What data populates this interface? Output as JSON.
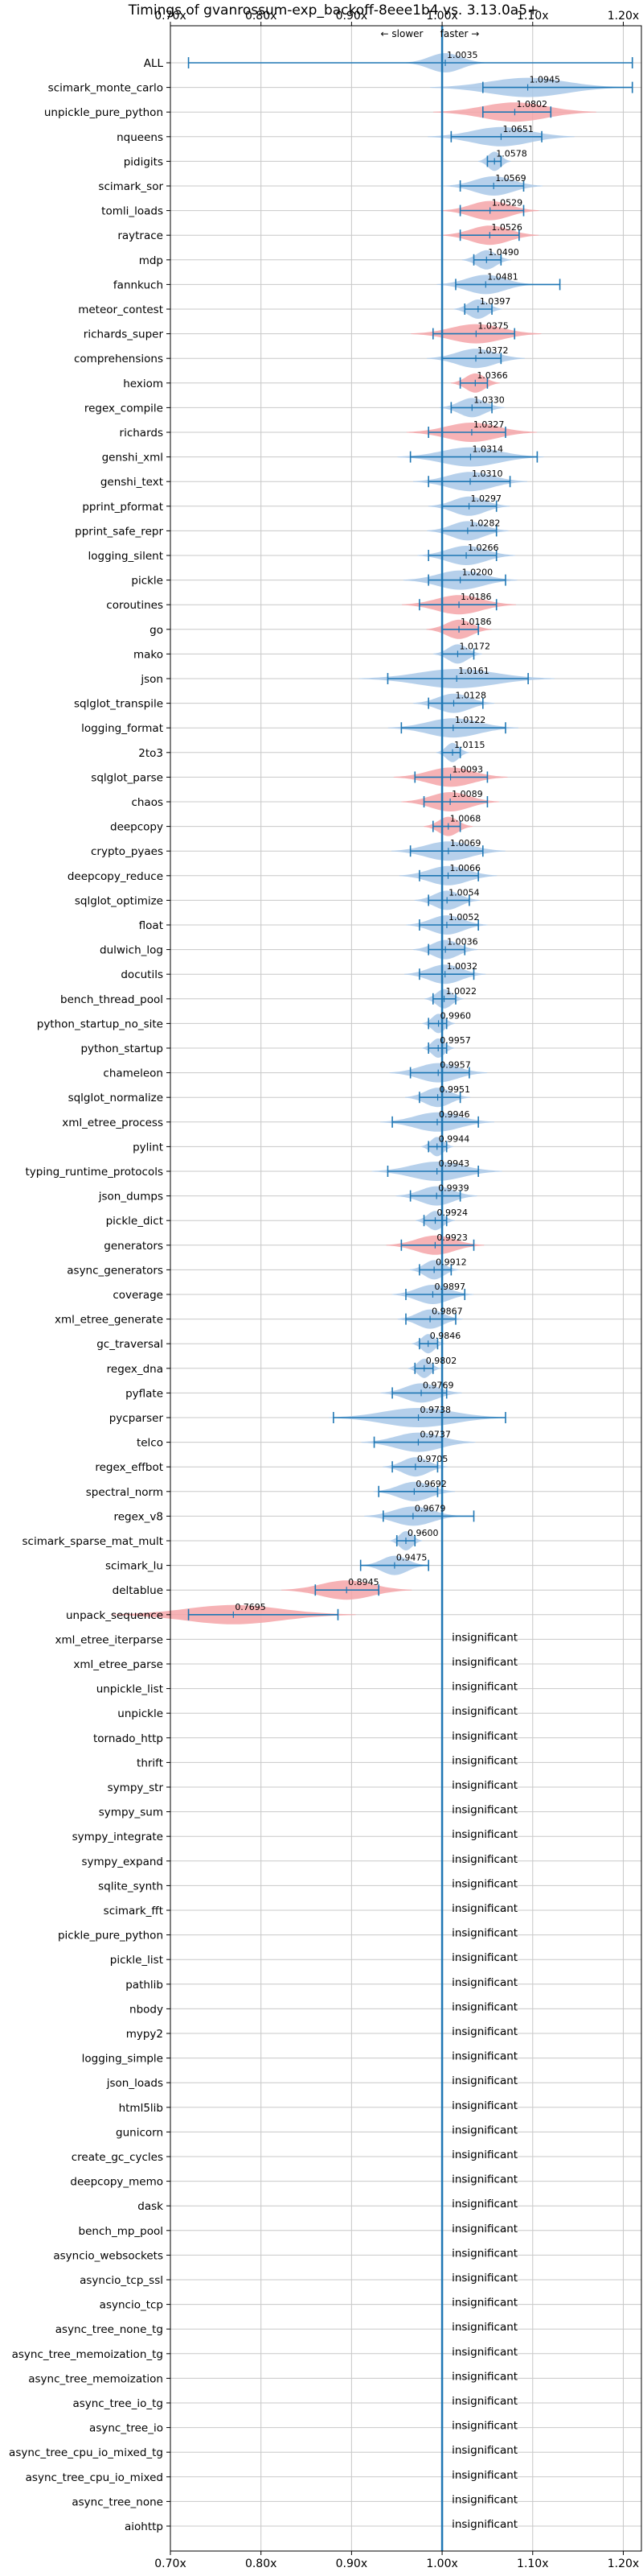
{
  "chart_data": {
    "type": "violin",
    "title": "Timings of gvanrossum-exp_backoff-8eee1b4 vs. 3.13.0a5+",
    "annotation_slower": "← slower",
    "annotation_faster": "faster →",
    "xlim": [
      0.7,
      1.22
    ],
    "x_ticks": [
      0.7,
      0.8,
      0.9,
      1.0,
      1.1,
      1.2
    ],
    "x_tick_labels": [
      "0.70x",
      "0.80x",
      "0.90x",
      "1.00x",
      "1.10x",
      "1.20x"
    ],
    "reference_line": 1.0,
    "grid": true,
    "colors": {
      "faster": "#a9c8e8",
      "slower": "#f4a5a8",
      "errorbar": "#1f77b4",
      "reference": "#1f77b4",
      "grid": "#c8c8c8"
    },
    "insignificant_text": "insignificant",
    "benchmarks": [
      {
        "name": "ALL",
        "value": 1.0035,
        "label": "1.0035",
        "lo": 0.72,
        "hi": 1.21,
        "spread": 0.025,
        "color": "blue"
      },
      {
        "name": "scimark_monte_carlo",
        "value": 1.0945,
        "label": "1.0945",
        "lo": 1.045,
        "hi": 1.21,
        "spread": 0.06,
        "color": "blue"
      },
      {
        "name": "unpickle_pure_python",
        "value": 1.0802,
        "label": "1.0802",
        "lo": 1.045,
        "hi": 1.12,
        "spread": 0.05,
        "color": "red"
      },
      {
        "name": "nqueens",
        "value": 1.0651,
        "label": "1.0651",
        "lo": 1.01,
        "hi": 1.11,
        "spread": 0.045,
        "color": "blue"
      },
      {
        "name": "pidigits",
        "value": 1.0578,
        "label": "1.0578",
        "lo": 1.05,
        "hi": 1.065,
        "spread": 0.01,
        "color": "blue"
      },
      {
        "name": "scimark_sor",
        "value": 1.0569,
        "label": "1.0569",
        "lo": 1.02,
        "hi": 1.09,
        "spread": 0.03,
        "color": "blue"
      },
      {
        "name": "tomli_loads",
        "value": 1.0529,
        "label": "1.0529",
        "lo": 1.02,
        "hi": 1.09,
        "spread": 0.03,
        "color": "red"
      },
      {
        "name": "raytrace",
        "value": 1.0526,
        "label": "1.0526",
        "lo": 1.02,
        "hi": 1.085,
        "spread": 0.03,
        "color": "red"
      },
      {
        "name": "mdp",
        "value": 1.049,
        "label": "1.0490",
        "lo": 1.035,
        "hi": 1.065,
        "spread": 0.015,
        "color": "blue"
      },
      {
        "name": "fannkuch",
        "value": 1.0481,
        "label": "1.0481",
        "lo": 1.015,
        "hi": 1.13,
        "spread": 0.03,
        "color": "blue"
      },
      {
        "name": "meteor_contest",
        "value": 1.0397,
        "label": "1.0397",
        "lo": 1.025,
        "hi": 1.055,
        "spread": 0.015,
        "color": "blue"
      },
      {
        "name": "richards_super",
        "value": 1.0375,
        "label": "1.0375",
        "lo": 0.99,
        "hi": 1.08,
        "spread": 0.04,
        "color": "red"
      },
      {
        "name": "comprehensions",
        "value": 1.0372,
        "label": "1.0372",
        "lo": 1.0,
        "hi": 1.065,
        "spread": 0.03,
        "color": "blue"
      },
      {
        "name": "hexiom",
        "value": 1.0366,
        "label": "1.0366",
        "lo": 1.02,
        "hi": 1.05,
        "spread": 0.015,
        "color": "red"
      },
      {
        "name": "regex_compile",
        "value": 1.033,
        "label": "1.0330",
        "lo": 1.01,
        "hi": 1.055,
        "spread": 0.02,
        "color": "blue"
      },
      {
        "name": "richards",
        "value": 1.0327,
        "label": "1.0327",
        "lo": 0.985,
        "hi": 1.07,
        "spread": 0.04,
        "color": "red"
      },
      {
        "name": "genshi_xml",
        "value": 1.0314,
        "label": "1.0314",
        "lo": 0.965,
        "hi": 1.105,
        "spread": 0.045,
        "color": "blue"
      },
      {
        "name": "genshi_text",
        "value": 1.031,
        "label": "1.0310",
        "lo": 0.985,
        "hi": 1.075,
        "spread": 0.035,
        "color": "blue"
      },
      {
        "name": "pprint_pformat",
        "value": 1.0297,
        "label": "1.0297",
        "lo": 1.0,
        "hi": 1.06,
        "spread": 0.025,
        "color": "blue"
      },
      {
        "name": "pprint_safe_repr",
        "value": 1.0282,
        "label": "1.0282",
        "lo": 1.0,
        "hi": 1.06,
        "spread": 0.025,
        "color": "blue"
      },
      {
        "name": "logging_silent",
        "value": 1.0266,
        "label": "1.0266",
        "lo": 0.985,
        "hi": 1.06,
        "spread": 0.03,
        "color": "blue"
      },
      {
        "name": "pickle",
        "value": 1.02,
        "label": "1.0200",
        "lo": 0.985,
        "hi": 1.07,
        "spread": 0.035,
        "color": "blue"
      },
      {
        "name": "coroutines",
        "value": 1.0186,
        "label": "1.0186",
        "lo": 0.975,
        "hi": 1.06,
        "spread": 0.035,
        "color": "red"
      },
      {
        "name": "go",
        "value": 1.0186,
        "label": "1.0186",
        "lo": 1.0,
        "hi": 1.04,
        "spread": 0.02,
        "color": "red"
      },
      {
        "name": "mako",
        "value": 1.0172,
        "label": "1.0172",
        "lo": 1.0,
        "hi": 1.035,
        "spread": 0.015,
        "color": "blue"
      },
      {
        "name": "json",
        "value": 1.0161,
        "label": "1.0161",
        "lo": 0.94,
        "hi": 1.095,
        "spread": 0.06,
        "color": "blue"
      },
      {
        "name": "sqlglot_transpile",
        "value": 1.0128,
        "label": "1.0128",
        "lo": 0.985,
        "hi": 1.045,
        "spread": 0.025,
        "color": "blue"
      },
      {
        "name": "logging_format",
        "value": 1.0122,
        "label": "1.0122",
        "lo": 0.955,
        "hi": 1.07,
        "spread": 0.04,
        "color": "blue"
      },
      {
        "name": "2to3",
        "value": 1.0115,
        "label": "1.0115",
        "lo": 1.0,
        "hi": 1.02,
        "spread": 0.01,
        "color": "blue"
      },
      {
        "name": "sqlglot_parse",
        "value": 1.0093,
        "label": "1.0093",
        "lo": 0.97,
        "hi": 1.05,
        "spread": 0.035,
        "color": "red"
      },
      {
        "name": "chaos",
        "value": 1.0089,
        "label": "1.0089",
        "lo": 0.98,
        "hi": 1.05,
        "spread": 0.03,
        "color": "red"
      },
      {
        "name": "deepcopy",
        "value": 1.0068,
        "label": "1.0068",
        "lo": 0.99,
        "hi": 1.02,
        "spread": 0.015,
        "color": "red"
      },
      {
        "name": "crypto_pyaes",
        "value": 1.0069,
        "label": "1.0069",
        "lo": 0.965,
        "hi": 1.045,
        "spread": 0.035,
        "color": "blue"
      },
      {
        "name": "deepcopy_reduce",
        "value": 1.0066,
        "label": "1.0066",
        "lo": 0.975,
        "hi": 1.04,
        "spread": 0.03,
        "color": "blue"
      },
      {
        "name": "sqlglot_optimize",
        "value": 1.0054,
        "label": "1.0054",
        "lo": 0.985,
        "hi": 1.03,
        "spread": 0.02,
        "color": "blue"
      },
      {
        "name": "float",
        "value": 1.0052,
        "label": "1.0052",
        "lo": 0.975,
        "hi": 1.04,
        "spread": 0.025,
        "color": "blue"
      },
      {
        "name": "dulwich_log",
        "value": 1.0036,
        "label": "1.0036",
        "lo": 0.985,
        "hi": 1.025,
        "spread": 0.02,
        "color": "blue"
      },
      {
        "name": "docutils",
        "value": 1.0032,
        "label": "1.0032",
        "lo": 0.975,
        "hi": 1.035,
        "spread": 0.025,
        "color": "blue"
      },
      {
        "name": "bench_thread_pool",
        "value": 1.0022,
        "label": "1.0022",
        "lo": 0.99,
        "hi": 1.015,
        "spread": 0.012,
        "color": "blue"
      },
      {
        "name": "python_startup_no_site",
        "value": 0.996,
        "label": "0.9960",
        "lo": 0.985,
        "hi": 1.005,
        "spread": 0.01,
        "color": "blue"
      },
      {
        "name": "python_startup",
        "value": 0.9957,
        "label": "0.9957",
        "lo": 0.985,
        "hi": 1.005,
        "spread": 0.01,
        "color": "blue"
      },
      {
        "name": "chameleon",
        "value": 0.9957,
        "label": "0.9957",
        "lo": 0.965,
        "hi": 1.03,
        "spread": 0.03,
        "color": "blue"
      },
      {
        "name": "sqlglot_normalize",
        "value": 0.9951,
        "label": "0.9951",
        "lo": 0.975,
        "hi": 1.02,
        "spread": 0.02,
        "color": "blue"
      },
      {
        "name": "xml_etree_process",
        "value": 0.9946,
        "label": "0.9946",
        "lo": 0.945,
        "hi": 1.04,
        "spread": 0.035,
        "color": "blue"
      },
      {
        "name": "pylint",
        "value": 0.9944,
        "label": "0.9944",
        "lo": 0.985,
        "hi": 1.005,
        "spread": 0.01,
        "color": "blue"
      },
      {
        "name": "typing_runtime_protocols",
        "value": 0.9943,
        "label": "0.9943",
        "lo": 0.94,
        "hi": 1.04,
        "spread": 0.04,
        "color": "blue"
      },
      {
        "name": "json_dumps",
        "value": 0.9939,
        "label": "0.9939",
        "lo": 0.965,
        "hi": 1.02,
        "spread": 0.025,
        "color": "blue"
      },
      {
        "name": "pickle_dict",
        "value": 0.9924,
        "label": "0.9924",
        "lo": 0.98,
        "hi": 1.005,
        "spread": 0.012,
        "color": "blue"
      },
      {
        "name": "generators",
        "value": 0.9923,
        "label": "0.9923",
        "lo": 0.955,
        "hi": 1.035,
        "spread": 0.03,
        "color": "red"
      },
      {
        "name": "async_generators",
        "value": 0.9912,
        "label": "0.9912",
        "lo": 0.975,
        "hi": 1.01,
        "spread": 0.015,
        "color": "blue"
      },
      {
        "name": "coverage",
        "value": 0.9897,
        "label": "0.9897",
        "lo": 0.96,
        "hi": 1.025,
        "spread": 0.025,
        "color": "blue"
      },
      {
        "name": "xml_etree_generate",
        "value": 0.9867,
        "label": "0.9867",
        "lo": 0.96,
        "hi": 1.015,
        "spread": 0.02,
        "color": "blue"
      },
      {
        "name": "gc_traversal",
        "value": 0.9846,
        "label": "0.9846",
        "lo": 0.975,
        "hi": 0.995,
        "spread": 0.01,
        "color": "blue"
      },
      {
        "name": "regex_dna",
        "value": 0.9802,
        "label": "0.9802",
        "lo": 0.97,
        "hi": 0.99,
        "spread": 0.01,
        "color": "blue"
      },
      {
        "name": "pyflate",
        "value": 0.9769,
        "label": "0.9769",
        "lo": 0.945,
        "hi": 1.005,
        "spread": 0.025,
        "color": "blue"
      },
      {
        "name": "pycparser",
        "value": 0.9738,
        "label": "0.9738",
        "lo": 0.88,
        "hi": 1.07,
        "spread": 0.055,
        "color": "blue"
      },
      {
        "name": "telco",
        "value": 0.9737,
        "label": "0.9737",
        "lo": 0.925,
        "hi": 1.0,
        "spread": 0.035,
        "color": "blue"
      },
      {
        "name": "regex_effbot",
        "value": 0.9705,
        "label": "0.9705",
        "lo": 0.945,
        "hi": 0.995,
        "spread": 0.02,
        "color": "blue"
      },
      {
        "name": "spectral_norm",
        "value": 0.9692,
        "label": "0.9692",
        "lo": 0.93,
        "hi": 0.995,
        "spread": 0.025,
        "color": "blue"
      },
      {
        "name": "regex_v8",
        "value": 0.9679,
        "label": "0.9679",
        "lo": 0.935,
        "hi": 1.035,
        "spread": 0.03,
        "color": "blue"
      },
      {
        "name": "scimark_sparse_mat_mult",
        "value": 0.96,
        "label": "0.9600",
        "lo": 0.95,
        "hi": 0.97,
        "spread": 0.01,
        "color": "blue"
      },
      {
        "name": "scimark_lu",
        "value": 0.9475,
        "label": "0.9475",
        "lo": 0.91,
        "hi": 0.985,
        "spread": 0.02,
        "color": "blue"
      },
      {
        "name": "deltablue",
        "value": 0.8945,
        "label": "0.8945",
        "lo": 0.86,
        "hi": 0.93,
        "spread": 0.04,
        "color": "red"
      },
      {
        "name": "unpack_sequence",
        "value": 0.7695,
        "label": "0.7695",
        "lo": 0.72,
        "hi": 0.885,
        "spread": 0.075,
        "color": "red"
      }
    ],
    "insignificant_benchmarks": [
      "xml_etree_iterparse",
      "xml_etree_parse",
      "unpickle_list",
      "unpickle",
      "tornado_http",
      "thrift",
      "sympy_str",
      "sympy_sum",
      "sympy_integrate",
      "sympy_expand",
      "sqlite_synth",
      "scimark_fft",
      "pickle_pure_python",
      "pickle_list",
      "pathlib",
      "nbody",
      "mypy2",
      "logging_simple",
      "json_loads",
      "html5lib",
      "gunicorn",
      "create_gc_cycles",
      "deepcopy_memo",
      "dask",
      "bench_mp_pool",
      "asyncio_websockets",
      "asyncio_tcp_ssl",
      "asyncio_tcp",
      "async_tree_none_tg",
      "async_tree_memoization_tg",
      "async_tree_memoization",
      "async_tree_io_tg",
      "async_tree_io",
      "async_tree_cpu_io_mixed_tg",
      "async_tree_cpu_io_mixed",
      "async_tree_none",
      "aiohttp"
    ]
  }
}
